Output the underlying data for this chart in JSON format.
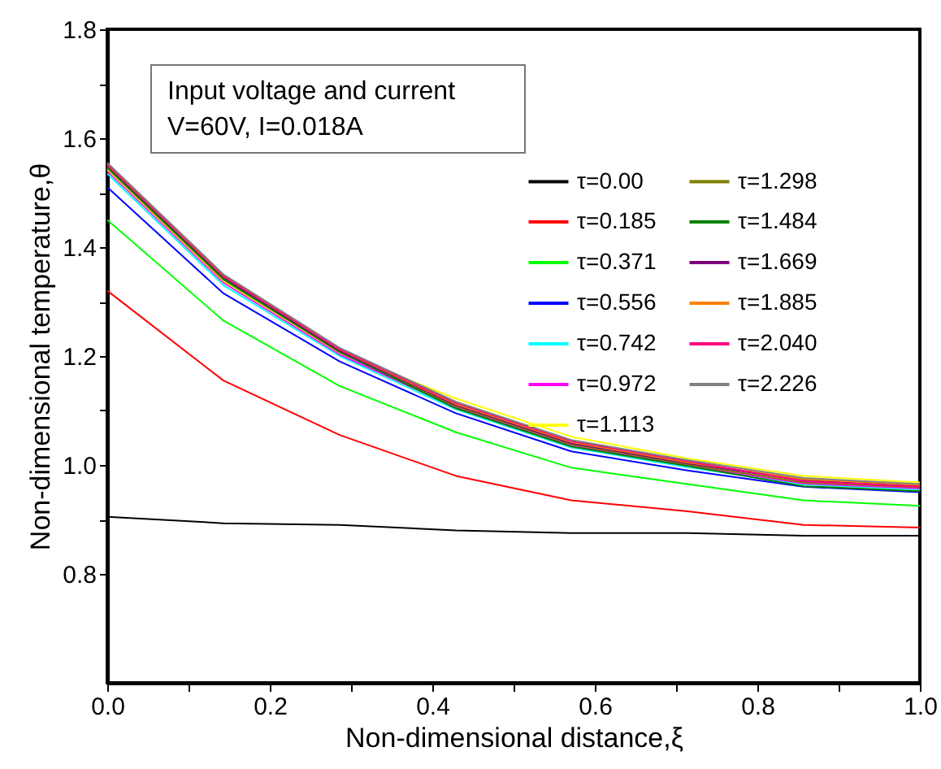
{
  "chart_data": {
    "type": "line",
    "xlabel": "Non-dimensional distance,ξ",
    "ylabel": "Non-dimensional temperature,θ",
    "annotations": [
      "Input voltage and current",
      "V=60V, I=0.018A"
    ],
    "x": [
      0,
      0.143,
      0.286,
      0.429,
      0.571,
      0.714,
      0.857,
      1.0
    ],
    "xlim": [
      0,
      1
    ],
    "ylim": [
      0.6,
      1.8
    ],
    "xticks": [
      {
        "value": 0,
        "label": "0.0"
      },
      {
        "value": 0.1,
        "label": null
      },
      {
        "value": 0.2,
        "label": "0.2"
      },
      {
        "value": 0.3,
        "label": null
      },
      {
        "value": 0.4,
        "label": "0.4"
      },
      {
        "value": 0.5,
        "label": null
      },
      {
        "value": 0.6,
        "label": "0.6"
      },
      {
        "value": 0.7,
        "label": null
      },
      {
        "value": 0.8,
        "label": "0.8"
      },
      {
        "value": 0.9,
        "label": null
      },
      {
        "value": 1,
        "label": "1.0"
      }
    ],
    "yticks": [
      {
        "value": 0.8,
        "label": "0.8"
      },
      {
        "value": 0.9,
        "label": null
      },
      {
        "value": 1.0,
        "label": "1.0"
      },
      {
        "value": 1.1,
        "label": null
      },
      {
        "value": 1.2,
        "label": "1.2"
      },
      {
        "value": 1.3,
        "label": null
      },
      {
        "value": 1.4,
        "label": "1.4"
      },
      {
        "value": 1.5,
        "label": null
      },
      {
        "value": 1.6,
        "label": "1.6"
      },
      {
        "value": 1.7,
        "label": null
      },
      {
        "value": 1.8,
        "label": "1.8"
      }
    ],
    "grid": false,
    "legend": "top right",
    "marker": "none",
    "line_style": "solid",
    "series": [
      {
        "name": "τ=0.00",
        "color": "#000000",
        "values": [
          0.905,
          0.893,
          0.89,
          0.88,
          0.875,
          0.875,
          0.87,
          0.87
        ]
      },
      {
        "name": "τ=0.185",
        "color": "#ff0000",
        "values": [
          1.32,
          1.155,
          1.055,
          0.98,
          0.935,
          0.915,
          0.89,
          0.885
        ]
      },
      {
        "name": "τ=0.371",
        "color": "#00ff00",
        "values": [
          1.45,
          1.265,
          1.145,
          1.06,
          0.995,
          0.965,
          0.935,
          0.925
        ]
      },
      {
        "name": "τ=0.556",
        "color": "#0000ff",
        "values": [
          1.51,
          1.315,
          1.19,
          1.095,
          1.025,
          0.99,
          0.96,
          0.95
        ]
      },
      {
        "name": "τ=0.742",
        "color": "#00ffff",
        "values": [
          1.535,
          1.33,
          1.2,
          1.102,
          1.032,
          0.996,
          0.964,
          0.955
        ]
      },
      {
        "name": "τ=0.972",
        "color": "#ff00ff",
        "values": [
          1.54,
          1.335,
          1.203,
          1.106,
          1.036,
          0.999,
          0.966,
          0.957
        ]
      },
      {
        "name": "τ=1.113",
        "color": "#ffff00",
        "values": [
          1.543,
          1.338,
          1.206,
          1.122,
          1.052,
          1.012,
          0.98,
          0.968
        ]
      },
      {
        "name": "τ=1.298",
        "color": "#808000",
        "values": [
          1.545,
          1.34,
          1.207,
          1.108,
          1.038,
          1.001,
          0.968,
          0.959
        ]
      },
      {
        "name": "τ=1.484",
        "color": "#008000",
        "values": [
          1.547,
          1.342,
          1.208,
          1.104,
          1.034,
          0.998,
          0.961,
          0.952
        ]
      },
      {
        "name": "τ=1.669",
        "color": "#800080",
        "values": [
          1.55,
          1.345,
          1.21,
          1.11,
          1.04,
          1.003,
          0.972,
          0.961
        ]
      },
      {
        "name": "τ=1.885",
        "color": "#ff8000",
        "values": [
          1.552,
          1.347,
          1.212,
          1.112,
          1.042,
          1.005,
          0.974,
          0.963
        ]
      },
      {
        "name": "τ=2.040",
        "color": "#ff0080",
        "values": [
          1.553,
          1.348,
          1.213,
          1.114,
          1.044,
          1.007,
          0.97,
          0.96
        ]
      },
      {
        "name": "τ=2.226",
        "color": "#808080",
        "values": [
          1.555,
          1.35,
          1.215,
          1.116,
          1.046,
          1.009,
          0.976,
          0.965
        ]
      }
    ]
  }
}
